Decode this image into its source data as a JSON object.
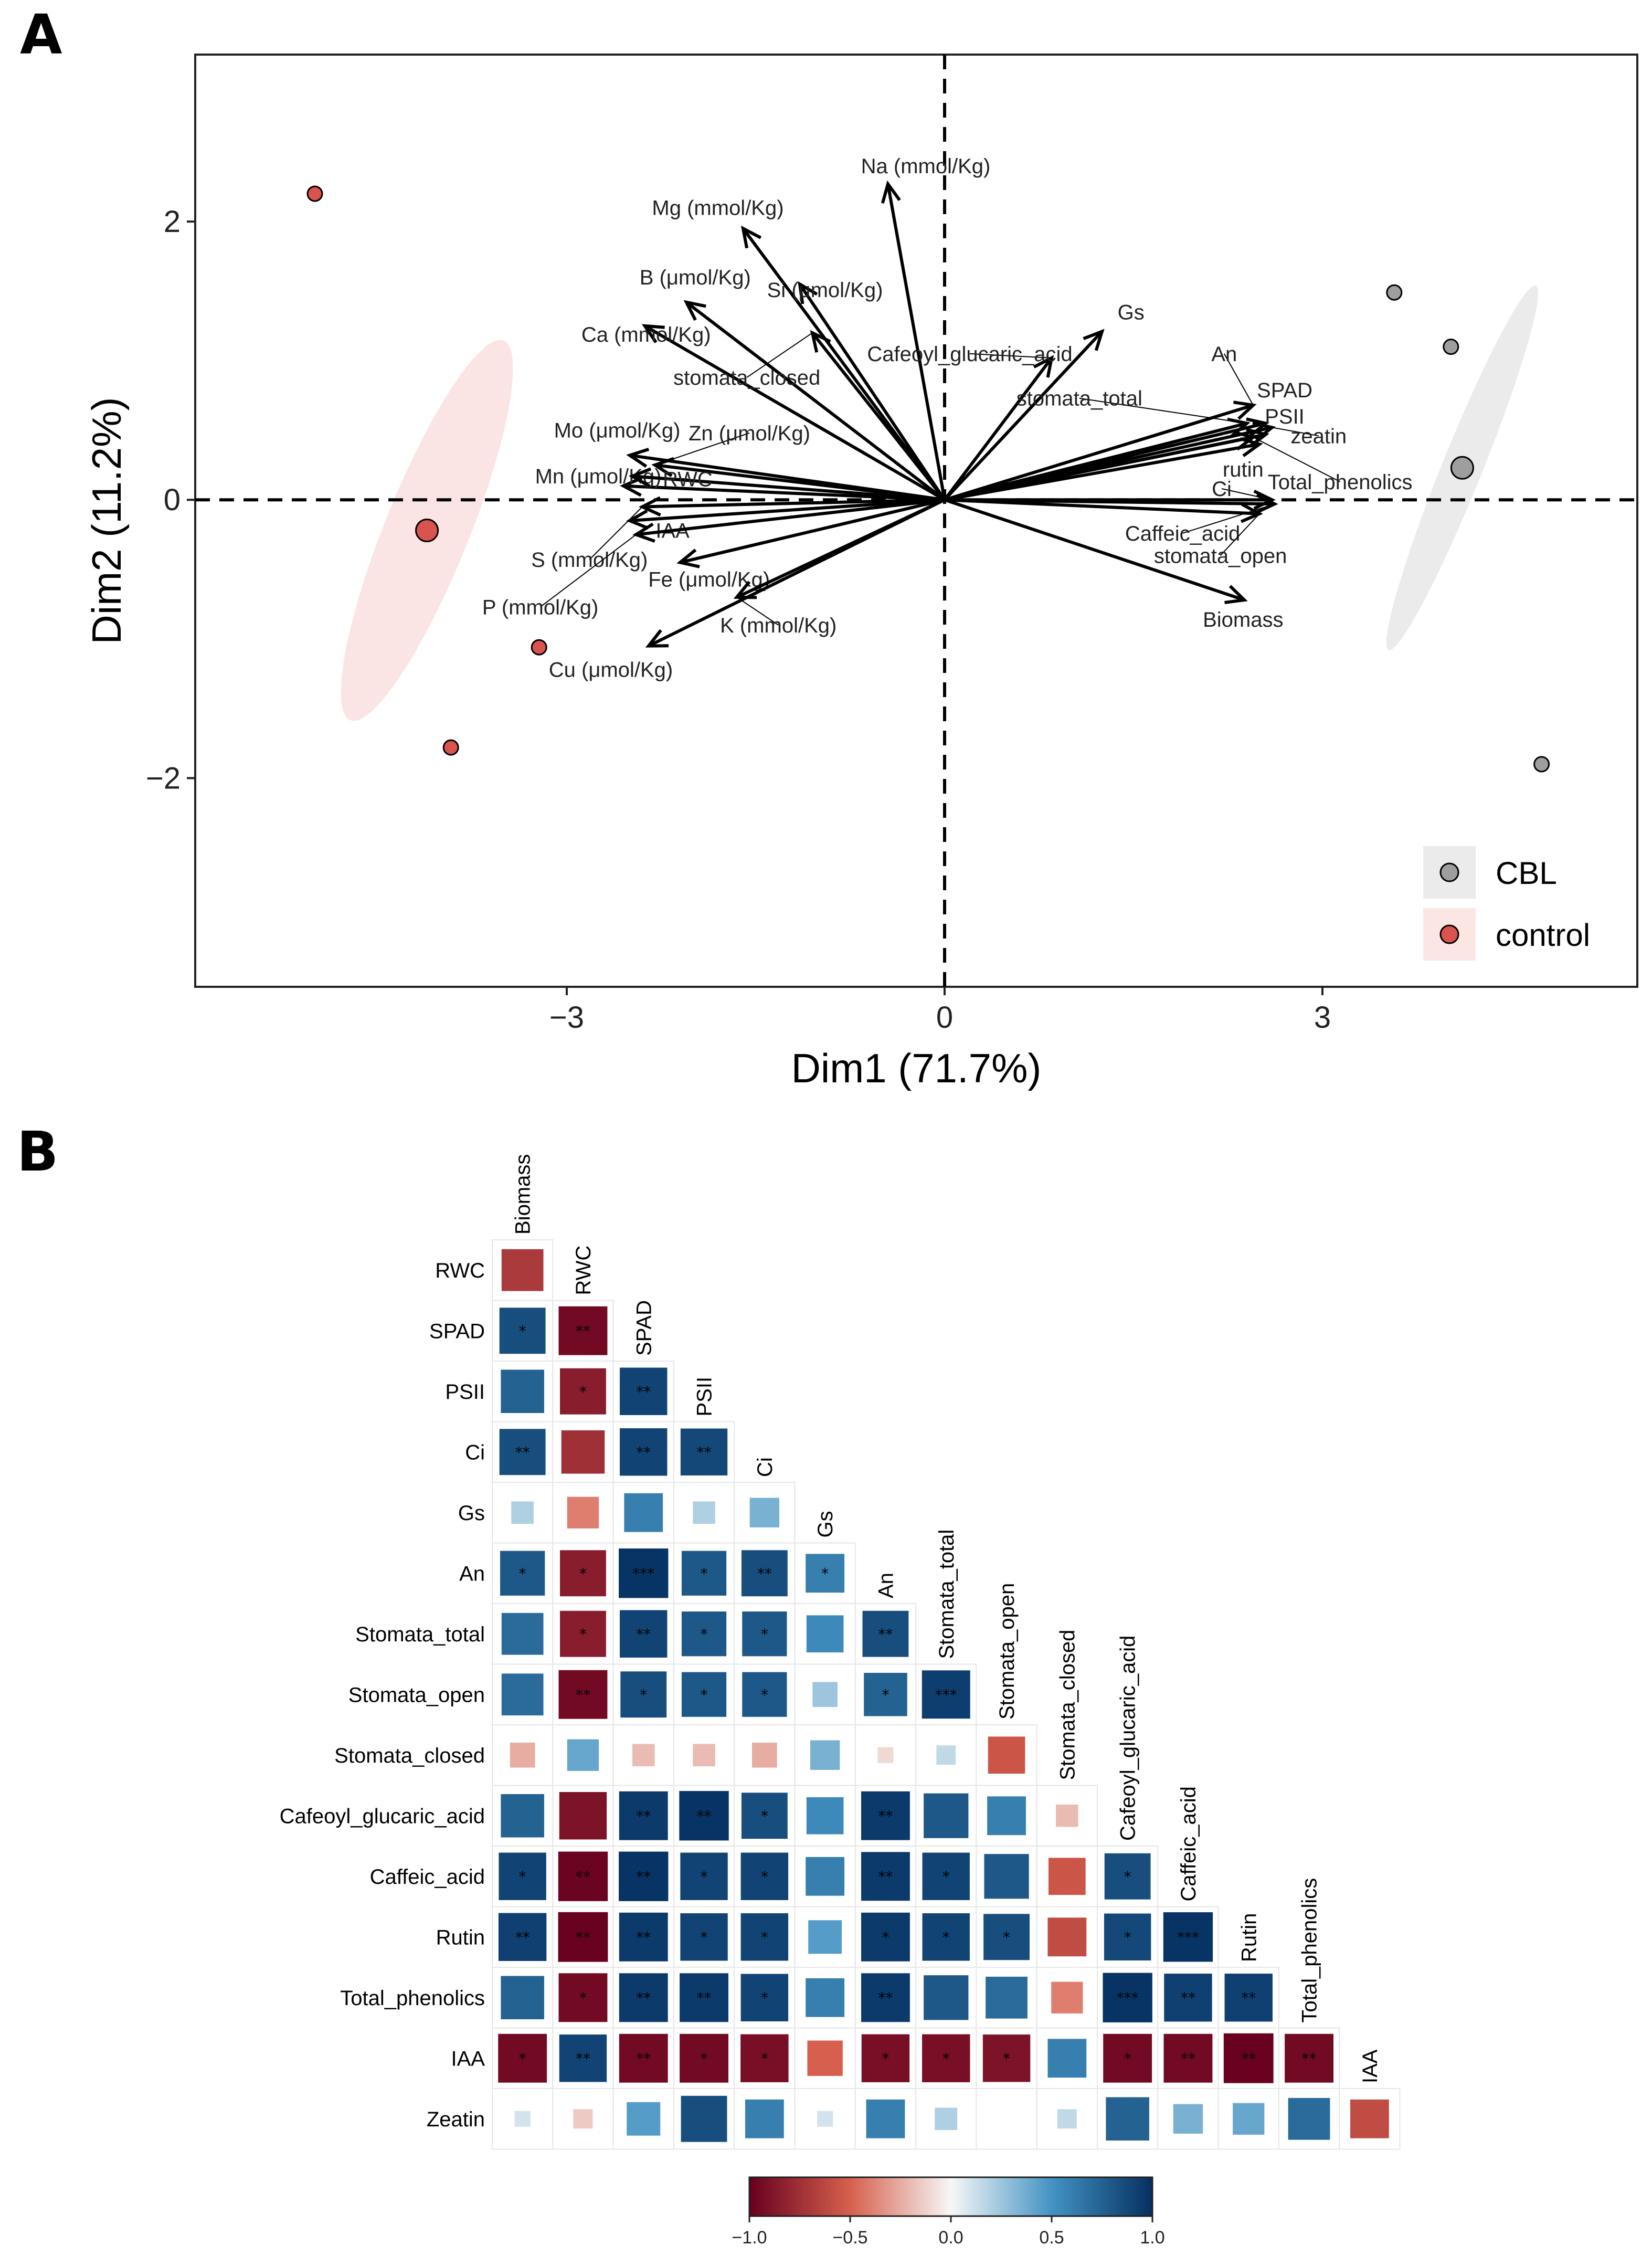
{
  "panel_a": {
    "letter": "A",
    "chart_data": {
      "type": "scatter",
      "subtype": "pca-biplot",
      "xlabel": "Dim1 (71.7%)",
      "ylabel": "Dim2 (11.2%)",
      "xlim": [
        -5.95,
        5.5
      ],
      "ylim": [
        -3.5,
        3.2
      ],
      "xticks": [
        -3,
        0,
        3
      ],
      "xtick_labels": [
        "−3",
        "0",
        "3"
      ],
      "yticks": [
        -2,
        0,
        2
      ],
      "ytick_labels": [
        "−2",
        "0",
        "2"
      ],
      "groups": [
        {
          "name": "CBL",
          "color": "#9e9e9e",
          "ellipse_color": "#e8e8e8",
          "points": [
            [
              3.57,
              1.49
            ],
            [
              4.02,
              1.1
            ],
            [
              4.74,
              -1.9
            ]
          ],
          "centroid": [
            4.11,
            0.23
          ],
          "ellipse": {
            "cx": 4.11,
            "cy": 0.23,
            "rx": 3.12,
            "ry": 0.32,
            "angle_deg": 68
          }
        },
        {
          "name": "control",
          "color": "#d9534f",
          "ellipse_color": "#f9e1df",
          "points": [
            [
              -5.0,
              2.2
            ],
            [
              -3.22,
              -1.06
            ],
            [
              -3.92,
              -1.78
            ]
          ],
          "centroid": [
            -4.11,
            -0.22
          ],
          "ellipse": {
            "cx": -4.11,
            "cy": -0.22,
            "rx": 3.25,
            "ry": 0.67,
            "angle_deg": 68
          }
        }
      ],
      "vectors": [
        {
          "label": "Na (mmol/Kg)",
          "x": -0.45,
          "y": 2.27,
          "lx": -0.15,
          "ly": 2.4
        },
        {
          "label": "Mg (mmol/Kg)",
          "x": -1.6,
          "y": 1.95,
          "lx": -1.8,
          "ly": 2.1
        },
        {
          "label": "B (μmol/Kg)",
          "x": -2.05,
          "y": 1.42,
          "lx": -1.98,
          "ly": 1.6
        },
        {
          "label": "Si (μmol/Kg)",
          "x": -1.15,
          "y": 1.55,
          "lx": -0.95,
          "ly": 1.51
        },
        {
          "label": "Ca (mmol/Kg)",
          "x": -2.38,
          "y": 1.25,
          "lx": -2.37,
          "ly": 1.19
        },
        {
          "label": "stomata_closed",
          "x": -1.05,
          "y": 1.2,
          "lx": -1.57,
          "ly": 0.88
        },
        {
          "label": "Cafeoyl_glucaric_acid",
          "x": 0.85,
          "y": 1.02,
          "lx": 0.2,
          "ly": 1.05
        },
        {
          "label": "Gs",
          "x": 1.25,
          "y": 1.21,
          "lx": 1.48,
          "ly": 1.35
        },
        {
          "label": "Mo (μmol/Kg)",
          "x": -2.5,
          "y": 0.32,
          "lx": -2.6,
          "ly": 0.5
        },
        {
          "label": "Zn (μmol/Kg)",
          "x": -2.3,
          "y": 0.25,
          "lx": -1.55,
          "ly": 0.48
        },
        {
          "label": "Mn (μmol/Kg)",
          "x": -2.55,
          "y": 0.1,
          "lx": -2.75,
          "ly": 0.17
        },
        {
          "label": "RWC",
          "x": -2.48,
          "y": 0.17,
          "lx": -2.04,
          "ly": 0.15
        },
        {
          "label": "IAA",
          "x": -2.5,
          "y": -0.15,
          "lx": -2.16,
          "ly": -0.22
        },
        {
          "label": "S (mmol/Kg)",
          "x": -2.4,
          "y": -0.05,
          "lx": -2.82,
          "ly": -0.43
        },
        {
          "label": "P (mmol/Kg)",
          "x": -2.45,
          "y": -0.25,
          "lx": -3.21,
          "ly": -0.77
        },
        {
          "label": "Fe (μmol/Kg)",
          "x": -2.1,
          "y": -0.45,
          "lx": -1.87,
          "ly": -0.57
        },
        {
          "label": "K (mmol/Kg)",
          "x": -1.65,
          "y": -0.7,
          "lx": -1.32,
          "ly": -0.9
        },
        {
          "label": "Cu (μmol/Kg)",
          "x": -2.35,
          "y": -1.05,
          "lx": -2.65,
          "ly": -1.22
        },
        {
          "label": "An",
          "x": 2.45,
          "y": 0.68,
          "lx": 2.22,
          "ly": 1.05
        },
        {
          "label": "stomata_total",
          "x": 2.4,
          "y": 0.55,
          "lx": 1.07,
          "ly": 0.73
        },
        {
          "label": "SPAD",
          "x": 2.55,
          "y": 0.55,
          "lx": 2.7,
          "ly": 0.79
        },
        {
          "label": "PSII",
          "x": 2.55,
          "y": 0.47,
          "lx": 2.7,
          "ly": 0.6
        },
        {
          "label": "zeatin",
          "x": 2.6,
          "y": 0.52,
          "lx": 2.97,
          "ly": 0.46
        },
        {
          "label": "rutin",
          "x": 2.5,
          "y": 0.4,
          "lx": 2.37,
          "ly": 0.22
        },
        {
          "label": "Total_phenolics",
          "x": 2.45,
          "y": 0.45,
          "lx": 3.14,
          "ly": 0.13
        },
        {
          "label": "Ci",
          "x": 2.6,
          "y": 0.0,
          "lx": 2.2,
          "ly": 0.08
        },
        {
          "label": "Caffeic_acid",
          "x": 2.62,
          "y": -0.03,
          "lx": 1.89,
          "ly": -0.24
        },
        {
          "label": "stomata_open",
          "x": 2.5,
          "y": -0.1,
          "lx": 2.19,
          "ly": -0.4
        },
        {
          "label": "Biomass",
          "x": 2.38,
          "y": -0.72,
          "lx": 2.37,
          "ly": -0.86
        }
      ],
      "legend": {
        "position": "bottom-right",
        "entries": [
          "CBL",
          "control"
        ]
      }
    }
  },
  "panel_b": {
    "letter": "B",
    "chart_data": {
      "type": "heatmap",
      "subtype": "correlation-lower-triangle",
      "row_labels": [
        "RWC",
        "SPAD",
        "PSII",
        "Ci",
        "Gs",
        "An",
        "Stomata_total",
        "Stomata_open",
        "Stomata_closed",
        "Cafeoyl_glucaric_acid",
        "Caffeic_acid",
        "Rutin",
        "Total_phenolics",
        "IAA",
        "Zeatin"
      ],
      "col_labels": [
        "Biomass",
        "RWC",
        "SPAD",
        "PSII",
        "Ci",
        "Gs",
        "An",
        "Stomata_total",
        "Stomata_open",
        "Stomata_closed",
        "Cafeoyl_glucaric_acid",
        "Caffeic_acid",
        "Rutin",
        "Total_phenolics",
        "IAA"
      ],
      "values": [
        [
          -0.7
        ],
        [
          0.85,
          -0.95
        ],
        [
          0.75,
          -0.85,
          0.9
        ],
        [
          0.85,
          -0.75,
          0.9,
          0.88
        ],
        [
          0.2,
          -0.4,
          0.6,
          0.2,
          0.35
        ],
        [
          0.8,
          -0.85,
          0.98,
          0.8,
          0.85,
          0.6
        ],
        [
          0.7,
          -0.85,
          0.9,
          0.8,
          0.8,
          0.55,
          0.85
        ],
        [
          0.7,
          -0.95,
          0.85,
          0.8,
          0.8,
          0.25,
          0.75,
          0.93
        ],
        [
          -0.25,
          0.4,
          -0.2,
          -0.2,
          -0.25,
          0.35,
          -0.1,
          0.15,
          -0.55
        ],
        [
          0.75,
          -0.9,
          0.95,
          0.98,
          0.85,
          0.55,
          0.95,
          0.8,
          0.6,
          -0.2
        ],
        [
          0.9,
          -0.98,
          0.98,
          0.9,
          0.9,
          0.6,
          0.95,
          0.9,
          0.8,
          -0.55,
          0.85
        ],
        [
          0.92,
          -0.99,
          0.95,
          0.9,
          0.9,
          0.45,
          0.95,
          0.9,
          0.85,
          -0.6,
          0.88,
          0.98
        ],
        [
          0.75,
          -0.95,
          0.95,
          0.95,
          0.9,
          0.6,
          0.95,
          0.8,
          0.7,
          -0.4,
          0.98,
          0.92,
          0.92
        ],
        [
          -0.95,
          0.9,
          -0.95,
          -0.95,
          -0.92,
          -0.5,
          -0.92,
          -0.92,
          -0.9,
          0.6,
          -0.95,
          -0.95,
          -0.99,
          -0.95
        ],
        [
          0.1,
          -0.15,
          0.45,
          0.85,
          0.6,
          0.1,
          0.6,
          0.2,
          0.0,
          0.15,
          0.75,
          0.35,
          0.4,
          0.7,
          -0.6
        ]
      ],
      "stars": [
        [
          ""
        ],
        [
          "*",
          "**"
        ],
        [
          "",
          "*",
          "**"
        ],
        [
          "**",
          "",
          "**",
          "**"
        ],
        [
          "",
          "",
          "",
          "",
          ""
        ],
        [
          "*",
          "*",
          "***",
          "*",
          "**",
          "*"
        ],
        [
          "",
          "*",
          "**",
          "*",
          "*",
          "",
          "**"
        ],
        [
          "",
          "**",
          "*",
          "*",
          "*",
          "",
          "*",
          "***"
        ],
        [
          "",
          "",
          "",
          "",
          "",
          "",
          "",
          "",
          ""
        ],
        [
          "",
          "",
          "**",
          "**",
          "*",
          "",
          "**",
          "",
          "",
          "",
          ""
        ],
        [
          "*",
          "**",
          "**",
          "*",
          "*",
          "",
          "**",
          "*",
          "",
          "",
          "*"
        ],
        [
          "**",
          "**",
          "**",
          "*",
          "*",
          "",
          "*",
          "*",
          "*",
          "",
          "*",
          "***"
        ],
        [
          "",
          "*",
          "**",
          "**",
          "*",
          "",
          "**",
          "",
          "",
          "",
          "***",
          "**",
          "**"
        ],
        [
          "*",
          "**",
          "**",
          "*",
          "*",
          "",
          "*",
          "*",
          "*",
          "",
          "*",
          "**",
          "**",
          "**"
        ],
        [
          "",
          "",
          "",
          "",
          "",
          "",
          "",
          "",
          "",
          "",
          "",
          "",
          "",
          "",
          ""
        ]
      ],
      "colorbar": {
        "min": -1.0,
        "max": 1.0,
        "ticks": [
          "−1.0",
          "−0.5",
          "0.0",
          "0.5",
          "1.0"
        ]
      },
      "colors": {
        "neg": "#67001f",
        "neg_mid": "#d6604d",
        "zero": "#f7f7f7",
        "pos_mid": "#4393c3",
        "pos": "#053061"
      }
    }
  }
}
